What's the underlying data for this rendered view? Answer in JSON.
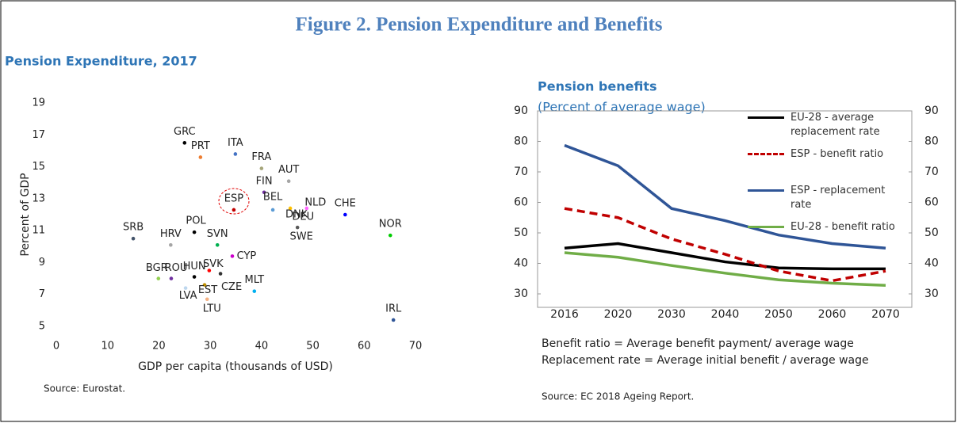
{
  "title": "Figure 2. Pension Expenditure and Benefits",
  "chart_data": [
    {
      "type": "scatter",
      "title": "Pension Expenditure, 2017",
      "x_label": "GDP per capita (thousands of USD)",
      "y_label": "Percent of GDP",
      "source": "Source: Eurostat.",
      "xlim": [
        0,
        70
      ],
      "xticks": [
        0,
        10,
        20,
        30,
        40,
        50,
        60,
        70
      ],
      "ylim": [
        5,
        19
      ],
      "yticks": [
        5,
        7,
        9,
        11,
        13,
        15,
        17,
        19
      ],
      "points": [
        {
          "label": "GRC",
          "x": 25.0,
          "y": 16.5,
          "color": "#000000"
        },
        {
          "label": "ITA",
          "x": 34.9,
          "y": 15.8,
          "color": "#4472c4"
        },
        {
          "label": "FRA",
          "x": 40.0,
          "y": 14.9,
          "color": "#a5a57a"
        },
        {
          "label": "PRT",
          "x": 28.1,
          "y": 15.6,
          "color": "#ed7d31"
        },
        {
          "label": "AUT",
          "x": 45.3,
          "y": 14.1,
          "color": "#a5a5a5"
        },
        {
          "label": "FIN",
          "x": 40.5,
          "y": 13.4,
          "color": "#7030a0"
        },
        {
          "label": "ESP",
          "x": 34.6,
          "y": 12.3,
          "color": "#c00000"
        },
        {
          "label": "BEL",
          "x": 42.2,
          "y": 12.3,
          "color": "#5b9bd5"
        },
        {
          "label": "DNK",
          "x": 45.6,
          "y": 12.4,
          "color": "#ffc000"
        },
        {
          "label": "NLD",
          "x": 48.8,
          "y": 12.4,
          "color": "#ff66ff"
        },
        {
          "label": "DEU",
          "x": 46.4,
          "y": 12.1,
          "color": "#7f7f7f"
        },
        {
          "label": "CHE",
          "x": 56.3,
          "y": 12.0,
          "color": "#0000ff"
        },
        {
          "label": "NOR",
          "x": 65.1,
          "y": 10.7,
          "color": "#00cc00"
        },
        {
          "label": "SRB",
          "x": 15.0,
          "y": 10.5,
          "color": "#44546a"
        },
        {
          "label": "POL",
          "x": 26.9,
          "y": 10.9,
          "color": "#000000"
        },
        {
          "label": "HRV",
          "x": 22.3,
          "y": 10.1,
          "color": "#a5a5a5"
        },
        {
          "label": "SVN",
          "x": 31.4,
          "y": 10.1,
          "color": "#00b050"
        },
        {
          "label": "SWE",
          "x": 47.0,
          "y": 11.2,
          "color": "#595959"
        },
        {
          "label": "CYP",
          "x": 34.3,
          "y": 9.4,
          "color": "#cc00cc"
        },
        {
          "label": "HUN",
          "x": 26.9,
          "y": 8.1,
          "color": "#000000"
        },
        {
          "label": "SVK",
          "x": 29.8,
          "y": 8.5,
          "color": "#ff0000"
        },
        {
          "label": "BGR",
          "x": 19.9,
          "y": 8.0,
          "color": "#92d050"
        },
        {
          "label": "ROU",
          "x": 22.4,
          "y": 8.0,
          "color": "#7030a0"
        },
        {
          "label": "EST",
          "x": 28.9,
          "y": 7.6,
          "color": "#c09000"
        },
        {
          "label": "LVA",
          "x": 25.2,
          "y": 7.4,
          "color": "#bdd7ee"
        },
        {
          "label": "CZE",
          "x": 32.0,
          "y": 8.3,
          "color": "#333333"
        },
        {
          "label": "MLT",
          "x": 38.6,
          "y": 7.2,
          "color": "#00b0f0"
        },
        {
          "label": "LTU",
          "x": 29.4,
          "y": 6.7,
          "color": "#f4b183"
        },
        {
          "label": "IRL",
          "x": 65.7,
          "y": 5.4,
          "color": "#2f5597"
        }
      ]
    },
    {
      "type": "line",
      "title": "Pension benefits",
      "subtitle": "(Percent of average wage)",
      "notes": [
        "Benefit ratio = Average benefit payment/ average wage",
        "Replacement rate = Average initial benefit / average wage"
      ],
      "source": "Source: EC 2018 Ageing Report.",
      "categories": [
        "2016",
        "2020",
        "2030",
        "2040",
        "2050",
        "2060",
        "2070"
      ],
      "ylim": [
        30,
        90
      ],
      "yticks": [
        30,
        40,
        50,
        60,
        70,
        80,
        90
      ],
      "y2lim": [
        30,
        90
      ],
      "y2ticks": [
        30,
        40,
        50,
        60,
        70,
        80,
        90
      ],
      "series": [
        {
          "name": "EU-28 - average replacement rate",
          "color": "#000000",
          "style": "solid",
          "values": [
            45,
            46.5,
            43.5,
            40.5,
            38.5,
            38.2,
            38.2
          ]
        },
        {
          "name": "ESP - benefit ratio",
          "color": "#c00000",
          "style": "dashed",
          "values": [
            58,
            55,
            48,
            43,
            37.5,
            34.3,
            37.5
          ]
        },
        {
          "name": "ESP - replacement rate",
          "color": "#2f5597",
          "style": "solid",
          "values": [
            78.7,
            72,
            58,
            54,
            49.3,
            46.5,
            45
          ]
        },
        {
          "name": "EU-28 - benefit ratio",
          "color": "#70ad47",
          "style": "solid",
          "values": [
            43.5,
            42,
            39.3,
            36.8,
            34.6,
            33.5,
            32.8
          ]
        }
      ]
    }
  ]
}
